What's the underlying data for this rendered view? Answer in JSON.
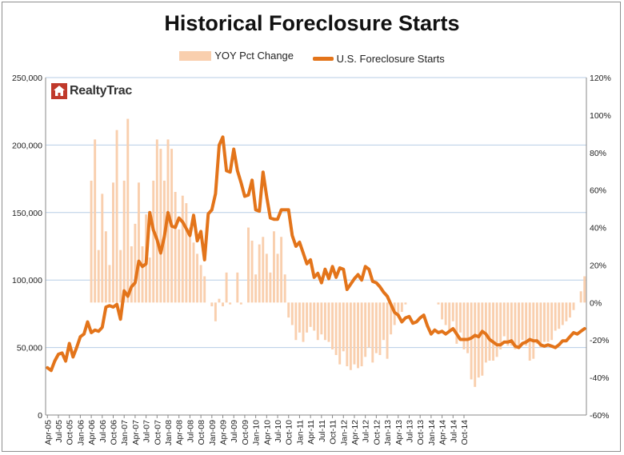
{
  "chart_data": {
    "type": "bar+line",
    "title": "Historical Foreclosure Starts",
    "legend": [
      "YOY Pct Change",
      "U.S. Foreclosure Starts"
    ],
    "brand": "RealtyTrac",
    "colors": {
      "bars": "#f9cfae",
      "line": "#e3741a",
      "grid": "#b7cde6"
    },
    "left_axis": {
      "min": 0,
      "max": 250000,
      "ticks": [
        "0",
        "50,000",
        "100,000",
        "150,000",
        "200,000",
        "250,000"
      ]
    },
    "right_axis": {
      "min": -60,
      "max": 120,
      "ticks": [
        "-60%",
        "-40%",
        "-20%",
        "0%",
        "20%",
        "40%",
        "60%",
        "80%",
        "100%",
        "120%"
      ]
    },
    "x_labels": [
      "Apr-05",
      "Jul-05",
      "Oct-05",
      "Jan-06",
      "Apr-06",
      "Jul-06",
      "Oct-06",
      "Jan-07",
      "Apr-07",
      "Jul-07",
      "Oct-07",
      "Jan-08",
      "Apr-08",
      "Jul-08",
      "Oct-08",
      "Jan-09",
      "Apr-09",
      "Jul-09",
      "Oct-09",
      "Jan-10",
      "Apr-10",
      "Jul-10",
      "Oct-10",
      "Jan-11",
      "Apr-11",
      "Jul-11",
      "Oct-11",
      "Jan-12",
      "Apr-12",
      "Jul-12",
      "Oct-12",
      "Jan-13",
      "Apr-13",
      "Jul-13",
      "Oct-13",
      "Jan-14",
      "Apr-14",
      "Jul-14",
      "Oct-14"
    ],
    "months_start": "Apr-05",
    "series": [
      {
        "name": "U.S. Foreclosure Starts",
        "values": [
          35000,
          33000,
          40000,
          45000,
          46000,
          40000,
          53000,
          43000,
          50000,
          58000,
          60000,
          69000,
          61000,
          63000,
          62000,
          65000,
          80000,
          81000,
          80000,
          82000,
          71000,
          92000,
          88000,
          95000,
          98000,
          114000,
          110000,
          112000,
          150000,
          137000,
          130000,
          120000,
          132000,
          150000,
          140000,
          139000,
          146000,
          143000,
          138000,
          133000,
          148000,
          129000,
          136000,
          115000,
          149000,
          152000,
          164000,
          200000,
          206000,
          181000,
          180000,
          197000,
          181000,
          172000,
          162000,
          163000,
          174000,
          152000,
          151000,
          180000,
          162000,
          146000,
          145000,
          145000,
          152000,
          152000,
          152000,
          133000,
          125000,
          128000,
          120000,
          112000,
          115000,
          102000,
          105000,
          98000,
          108000,
          101000,
          110000,
          102000,
          109000,
          108000,
          93000,
          97000,
          101000,
          104000,
          100000,
          110000,
          108000,
          99000,
          98000,
          95000,
          91000,
          88000,
          82000,
          76000,
          74000,
          69000,
          72000,
          73000,
          68000,
          69000,
          72000,
          74000,
          66000,
          60000,
          63000,
          61000,
          62000,
          60000,
          62000,
          64000,
          60000,
          56000,
          56000,
          56000,
          57000,
          59000,
          58000,
          62000,
          60000,
          56000,
          54000,
          52000,
          52000,
          54000,
          54000,
          55000,
          51000,
          50000,
          53000,
          54000,
          56000,
          55000,
          55000,
          52000,
          51000,
          52000,
          51000,
          50000,
          52000,
          55000,
          55000,
          58000,
          61000,
          60000,
          62000,
          64000
        ]
      },
      {
        "name": "YOY Pct Change",
        "values": [
          null,
          null,
          null,
          null,
          null,
          null,
          null,
          null,
          null,
          null,
          null,
          null,
          null,
          null,
          null,
          null,
          null,
          null,
          null,
          null,
          null,
          null,
          null,
          null,
          null,
          null,
          null,
          null,
          null,
          null,
          null,
          null,
          null,
          null,
          null,
          null,
          null,
          null,
          null,
          null,
          null,
          null,
          null,
          null,
          null,
          null,
          null,
          null,
          null,
          null,
          null,
          null,
          null,
          null,
          null,
          null,
          null,
          null,
          null,
          null,
          null,
          null,
          null,
          null,
          null,
          null,
          null,
          null,
          null,
          null,
          null,
          null,
          null,
          null,
          null,
          null,
          null,
          null,
          null,
          null,
          null,
          null,
          null,
          null,
          null,
          null,
          null,
          null,
          null,
          null,
          null,
          null,
          null,
          null,
          null,
          null,
          null,
          null,
          null,
          null,
          null,
          null,
          null,
          null,
          null,
          null,
          null,
          null,
          null,
          null,
          null,
          null,
          null,
          null,
          null,
          null,
          null,
          null,
          null,
          null,
          null,
          null,
          null,
          null,
          null,
          null,
          null,
          null,
          null,
          null,
          null,
          null,
          null,
          null,
          null,
          null,
          null,
          null,
          null,
          null,
          null,
          null,
          null,
          null,
          null,
          null,
          null,
          null
        ]
      }
    ],
    "yoy_pct": [
      null,
      null,
      null,
      null,
      null,
      null,
      null,
      null,
      null,
      null,
      null,
      null,
      65,
      87,
      28,
      58,
      38,
      20,
      64,
      92,
      28,
      65,
      98,
      30,
      42,
      64,
      30,
      47,
      24,
      65,
      87,
      82,
      65,
      87,
      82,
      59,
      39,
      57,
      53,
      40,
      32,
      26,
      20,
      14,
      0,
      -2,
      -10,
      2,
      -2,
      16,
      -1,
      0,
      16,
      -1,
      0,
      40,
      33,
      15,
      31,
      35,
      26,
      16,
      38,
      26,
      35,
      15,
      -8,
      -12,
      -20,
      -16,
      -21,
      -16,
      -13,
      -15,
      -20,
      -17,
      -20,
      -21,
      -25,
      -28,
      -33,
      -26,
      -34,
      -36,
      -33,
      -35,
      -34,
      -29,
      -24,
      -32,
      -27,
      -28,
      -20,
      -30,
      -17,
      -12,
      -8,
      -5,
      -1,
      0,
      0,
      0,
      0,
      0,
      0,
      0,
      0,
      -1,
      -9,
      -12,
      -16,
      -10,
      -22,
      -16,
      -25,
      -27,
      -41,
      -45,
      -40,
      -39,
      -32,
      -31,
      -31,
      -29,
      -25,
      -18,
      -23,
      -23,
      -25,
      -24,
      -20,
      -23,
      -31,
      -30,
      -22,
      -24,
      -21,
      -21,
      -20,
      -15,
      -14,
      -12,
      -10,
      -8,
      -4,
      0,
      6,
      14
    ]
  }
}
